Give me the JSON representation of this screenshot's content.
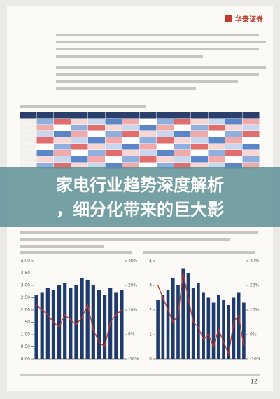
{
  "header": {
    "logo": "华泰证券"
  },
  "overlay": {
    "title_lines": [
      "家电行业趋势深度解析",
      "，细分化带来的巨大影"
    ]
  },
  "charts": [
    {
      "type": "bar",
      "color": "#1f3b6e",
      "values": [
        2.6,
        2.7,
        2.9,
        2.8,
        3.0,
        3.1,
        2.9,
        3.0,
        3.3,
        3.2,
        3.0,
        2.8,
        2.6,
        2.9,
        2.7,
        2.8
      ],
      "ylim": [
        0,
        4
      ],
      "yticks": [
        {
          "value": 0,
          "label": "0.00"
        },
        {
          "value": 0.5,
          "label": "0.50"
        },
        {
          "value": 1,
          "label": "1.00"
        },
        {
          "value": 1.5,
          "label": "1.50"
        },
        {
          "value": 2,
          "label": "2.00"
        },
        {
          "value": 2.5,
          "label": "2.50"
        },
        {
          "value": 3,
          "label": "3.00"
        },
        {
          "value": 3.5,
          "label": "3.50"
        },
        {
          "value": 4,
          "label": "4.00"
        }
      ],
      "line": {
        "color": "#c0392b",
        "values": [
          12,
          10,
          8,
          5,
          3,
          8,
          6,
          4,
          7,
          12,
          2,
          -3,
          -5,
          5,
          8,
          10
        ]
      },
      "y2lim": [
        -10,
        30
      ],
      "y2ticks": [
        {
          "value": -10,
          "label": "-10%"
        },
        {
          "value": 0,
          "label": "0%"
        },
        {
          "value": 10,
          "label": "10%"
        },
        {
          "value": 20,
          "label": "20%"
        },
        {
          "value": 30,
          "label": "30%"
        }
      ]
    },
    {
      "type": "bar",
      "color": "#1f3b6e",
      "values": [
        2.4,
        2.6,
        2.8,
        3.3,
        3.0,
        3.7,
        3.5,
        2.9,
        3.1,
        2.7,
        2.5,
        2.3,
        2.6,
        2.4,
        2.2,
        2.5,
        2.7,
        2.3
      ],
      "ylim": [
        0,
        4
      ],
      "yticks": [
        0,
        1,
        2,
        3,
        4
      ],
      "line": {
        "color": "#c0392b",
        "values": [
          20,
          15,
          10,
          5,
          8,
          25,
          15,
          5,
          3,
          -2,
          0,
          -5,
          2,
          -3,
          -8,
          5,
          8,
          -5
        ]
      },
      "y2lim": [
        -10,
        30
      ],
      "y2ticks": [
        {
          "value": -10,
          "label": "-10%"
        },
        {
          "value": 0,
          "label": "0%"
        },
        {
          "value": 10,
          "label": "10%"
        },
        {
          "value": 20,
          "label": "20%"
        },
        {
          "value": 30,
          "label": "30%"
        }
      ]
    }
  ],
  "footer": {
    "page": "12"
  }
}
